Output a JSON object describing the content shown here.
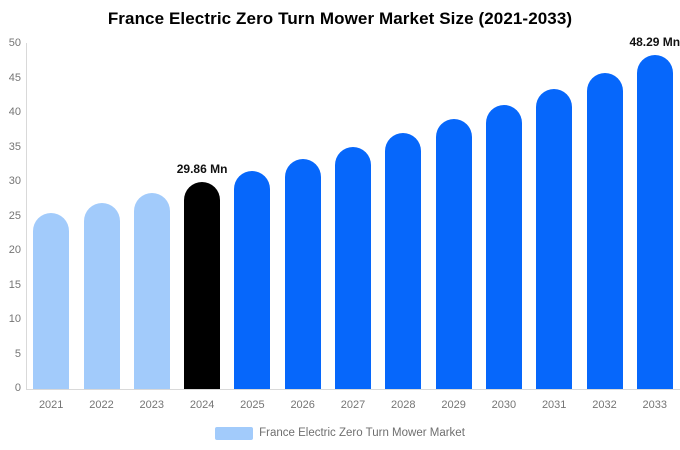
{
  "title": "France Electric Zero Turn Mower Market Size (2021-2033)",
  "legend": {
    "label": "France Electric Zero Turn Mower Market",
    "swatch_color": "#a2cbfb"
  },
  "colors": {
    "bar_light": "#a2cbfb",
    "bar_highlight": "#000000",
    "bar_primary": "#0667fb",
    "axis_text": "#757575",
    "axis_line": "#d9d9d9",
    "title_text": "#000000",
    "data_label_text": "#111111",
    "background": "#ffffff"
  },
  "chart_data": {
    "type": "bar",
    "title": "France Electric Zero Turn Mower Market Size (2021-2033)",
    "series_name": "France Electric Zero Turn Mower Market",
    "unit": "Mn",
    "categories": [
      "2021",
      "2022",
      "2023",
      "2024",
      "2025",
      "2026",
      "2027",
      "2028",
      "2029",
      "2030",
      "2031",
      "2032",
      "2033"
    ],
    "values": [
      25.44,
      26.83,
      28.31,
      29.86,
      31.5,
      33.22,
      35.05,
      36.97,
      39.0,
      41.14,
      43.4,
      45.78,
      48.29
    ],
    "bar_color_keys": [
      "bar_light",
      "bar_light",
      "bar_light",
      "bar_highlight",
      "bar_primary",
      "bar_primary",
      "bar_primary",
      "bar_primary",
      "bar_primary",
      "bar_primary",
      "bar_primary",
      "bar_primary",
      "bar_primary"
    ],
    "data_labels": [
      "",
      "",
      "",
      "29.86 Mn",
      "",
      "",
      "",
      "",
      "",
      "",
      "",
      "",
      "48.29 Mn"
    ],
    "xlabel": "",
    "ylabel": "",
    "ylim": [
      0,
      50
    ],
    "ytick_step": 5,
    "grid": false,
    "legend_position": "bottom"
  }
}
